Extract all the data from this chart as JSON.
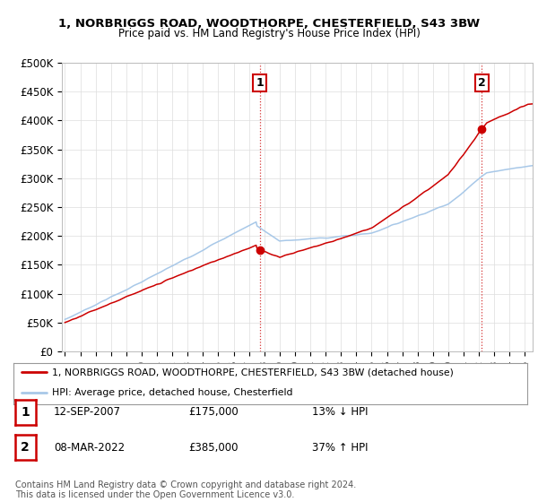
{
  "title_line1": "1, NORBRIGGS ROAD, WOODTHORPE, CHESTERFIELD, S43 3BW",
  "title_line2": "Price paid vs. HM Land Registry's House Price Index (HPI)",
  "ylim": [
    0,
    500000
  ],
  "yticks": [
    0,
    50000,
    100000,
    150000,
    200000,
    250000,
    300000,
    350000,
    400000,
    450000,
    500000
  ],
  "ytick_labels": [
    "£0",
    "£50K",
    "£100K",
    "£150K",
    "£200K",
    "£250K",
    "£300K",
    "£350K",
    "£400K",
    "£450K",
    "£500K"
  ],
  "hpi_color": "#a8c8e8",
  "price_color": "#cc0000",
  "sale1_x": 2007.7,
  "sale1_y": 175000,
  "sale2_x": 2022.19,
  "sale2_y": 385000,
  "sale1_label": "12-SEP-2007",
  "sale1_price": "£175,000",
  "sale1_hpi": "13% ↓ HPI",
  "sale2_label": "08-MAR-2022",
  "sale2_price": "£385,000",
  "sale2_hpi": "37% ↑ HPI",
  "legend_line1": "1, NORBRIGGS ROAD, WOODTHORPE, CHESTERFIELD, S43 3BW (detached house)",
  "legend_line2": "HPI: Average price, detached house, Chesterfield",
  "footnote": "Contains HM Land Registry data © Crown copyright and database right 2024.\nThis data is licensed under the Open Government Licence v3.0.",
  "background_color": "#ffffff",
  "grid_color": "#dddddd",
  "xlim_start": 1994.8,
  "xlim_end": 2025.5,
  "xtick_start": 1995,
  "xtick_end": 2026
}
